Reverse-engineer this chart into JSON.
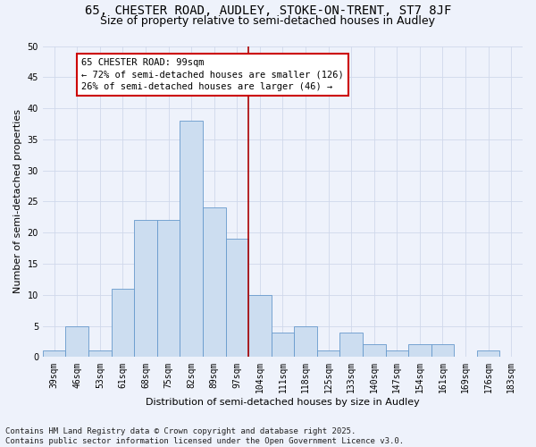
{
  "title1": "65, CHESTER ROAD, AUDLEY, STOKE-ON-TRENT, ST7 8JF",
  "title2": "Size of property relative to semi-detached houses in Audley",
  "xlabel": "Distribution of semi-detached houses by size in Audley",
  "ylabel": "Number of semi-detached properties",
  "categories": [
    "39sqm",
    "46sqm",
    "53sqm",
    "61sqm",
    "68sqm",
    "75sqm",
    "82sqm",
    "89sqm",
    "97sqm",
    "104sqm",
    "111sqm",
    "118sqm",
    "125sqm",
    "133sqm",
    "140sqm",
    "147sqm",
    "154sqm",
    "161sqm",
    "169sqm",
    "176sqm",
    "183sqm"
  ],
  "values": [
    1,
    5,
    1,
    11,
    22,
    22,
    38,
    24,
    19,
    10,
    4,
    5,
    1,
    4,
    2,
    1,
    2,
    2,
    0,
    1,
    0
  ],
  "bar_color": "#ccddf0",
  "bar_edge_color": "#6699cc",
  "vline_x": 8.5,
  "vline_color": "#aa0000",
  "annotation_text": "65 CHESTER ROAD: 99sqm\n← 72% of semi-detached houses are smaller (126)\n26% of semi-detached houses are larger (46) →",
  "annotation_box_facecolor": "#ffffff",
  "annotation_box_edge": "#cc0000",
  "ylim": [
    0,
    50
  ],
  "yticks": [
    0,
    5,
    10,
    15,
    20,
    25,
    30,
    35,
    40,
    45,
    50
  ],
  "grid_color": "#d0d8eb",
  "background_color": "#eef2fb",
  "footer": "Contains HM Land Registry data © Crown copyright and database right 2025.\nContains public sector information licensed under the Open Government Licence v3.0.",
  "title1_fontsize": 10,
  "title2_fontsize": 9,
  "axis_label_fontsize": 8,
  "tick_fontsize": 7,
  "annotation_fontsize": 7.5,
  "footer_fontsize": 6.5,
  "ylabel_fontsize": 8
}
